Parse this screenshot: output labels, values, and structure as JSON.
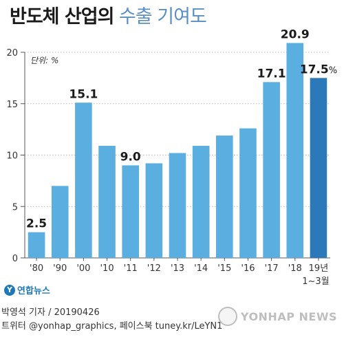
{
  "header": {
    "title_bold": "반도체 산업의",
    "title_light": "수출 기여도"
  },
  "chart_data": {
    "type": "bar",
    "unit_label": "단위: %",
    "categories": [
      "'80",
      "'90",
      "'00",
      "'10",
      "'11",
      "'12",
      "'13",
      "'14",
      "'15",
      "'16",
      "'17",
      "'18",
      "19년"
    ],
    "category_sublabel": {
      "index": 12,
      "text": "1~3월"
    },
    "values": [
      2.5,
      7.0,
      15.1,
      10.9,
      9.0,
      9.2,
      10.2,
      10.9,
      11.9,
      12.6,
      17.1,
      20.9,
      17.5
    ],
    "data_labels": [
      {
        "index": 0,
        "text": "2.5"
      },
      {
        "index": 2,
        "text": "15.1"
      },
      {
        "index": 4,
        "text": "9.0"
      },
      {
        "index": 10,
        "text": "17.1"
      },
      {
        "index": 11,
        "text": "20.9"
      },
      {
        "index": 12,
        "text": "17.5",
        "suffix": "%"
      }
    ],
    "highlight_index": 12,
    "ylim": [
      0,
      20
    ],
    "yticks": [
      0,
      5,
      10,
      15,
      20
    ],
    "grid": true,
    "colors": {
      "bar": "#5aaee0",
      "highlight": "#2b79b8",
      "grid": "#bbbbbb",
      "axis": "#555555"
    }
  },
  "footer": {
    "logo_mark": "Y",
    "logo_text": "연합뉴스",
    "credit_line1": "박영석 기자 /  20190426",
    "credit_line2": "트위터 @yonhap_graphics, 페이스북 tuney.kr/LeYN1",
    "watermark": "YONHAP NEWS"
  }
}
